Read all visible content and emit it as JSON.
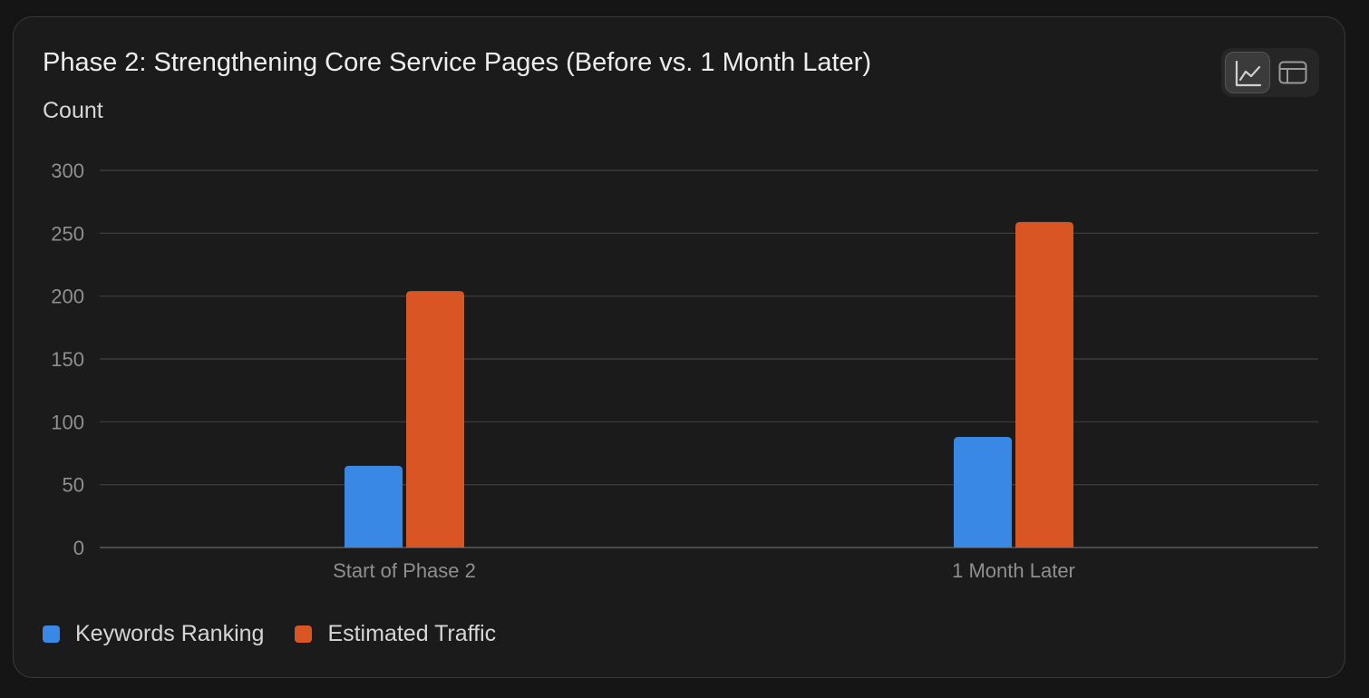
{
  "header": {
    "title": "Phase 2: Strengthening Core Service Pages (Before vs. 1 Month Later)"
  },
  "view_toggle": {
    "options": [
      {
        "icon": "line-chart-icon",
        "active": true
      },
      {
        "icon": "table-icon",
        "active": false
      }
    ]
  },
  "colors": {
    "background": "#1b1b1b",
    "grid": "#3a3a3a",
    "keywords": "#3a88e5",
    "traffic": "#d95624"
  },
  "chart_data": {
    "type": "bar",
    "title": "Phase 2: Strengthening Core Service Pages (Before vs. 1 Month Later)",
    "xlabel": "",
    "ylabel": "Count",
    "ylim": [
      0,
      300
    ],
    "yticks": [
      "0",
      "50",
      "100",
      "150",
      "200",
      "250",
      "300"
    ],
    "grid": true,
    "legend_position": "bottom-left",
    "categories": [
      "Start of Phase 2",
      "1 Month Later"
    ],
    "series": [
      {
        "name": "Keywords Ranking",
        "color": "#3a88e5",
        "values": [
          65,
          88
        ]
      },
      {
        "name": "Estimated Traffic",
        "color": "#d95624",
        "values": [
          204,
          259
        ]
      }
    ]
  }
}
